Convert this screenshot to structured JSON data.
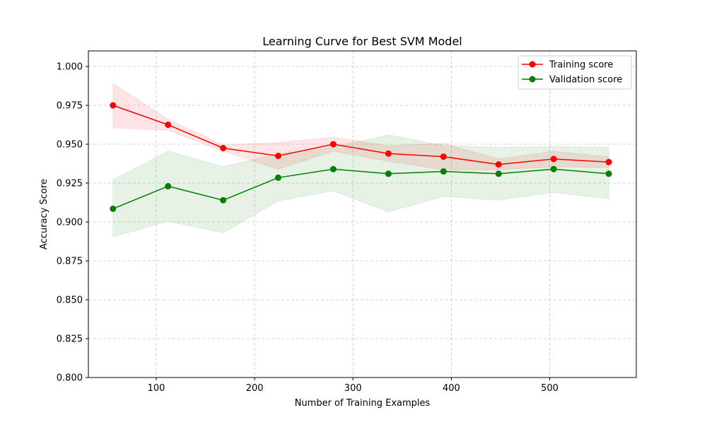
{
  "chart_data": {
    "type": "line",
    "title": "Learning Curve for Best SVM Model",
    "xlabel": "Number of Training Examples",
    "ylabel": "Accuracy Score",
    "xlim": [
      31,
      588
    ],
    "ylim": [
      0.8,
      1.01
    ],
    "x_ticks": [
      100,
      200,
      300,
      400,
      500
    ],
    "x_tick_labels": [
      "100",
      "200",
      "300",
      "400",
      "500"
    ],
    "y_ticks": [
      0.8,
      0.825,
      0.85,
      0.875,
      0.9,
      0.925,
      0.95,
      0.975,
      1.0
    ],
    "y_tick_labels": [
      "0.800",
      "0.825",
      "0.850",
      "0.875",
      "0.900",
      "0.925",
      "0.950",
      "0.975",
      "1.000"
    ],
    "grid": true,
    "legend_position": "top-right",
    "x": [
      56,
      112,
      168,
      224,
      280,
      336,
      392,
      448,
      504,
      560
    ],
    "series": [
      {
        "name": "Training score",
        "color": "#ff0000",
        "band_color": "#ff0000",
        "values": [
          0.975,
          0.9625,
          0.9475,
          0.9425,
          0.95,
          0.944,
          0.942,
          0.937,
          0.9405,
          0.9385
        ],
        "band_upper": [
          0.989,
          0.966,
          0.9495,
          0.951,
          0.9545,
          0.949,
          0.9505,
          0.9405,
          0.9455,
          0.942
        ],
        "band_lower": [
          0.9605,
          0.959,
          0.9455,
          0.934,
          0.9455,
          0.939,
          0.9335,
          0.9335,
          0.9355,
          0.935
        ]
      },
      {
        "name": "Validation score",
        "color": "#008000",
        "band_color": "#008000",
        "values": [
          0.9085,
          0.923,
          0.914,
          0.9285,
          0.934,
          0.931,
          0.9325,
          0.931,
          0.934,
          0.931
        ],
        "band_upper": [
          0.927,
          0.9455,
          0.9355,
          0.944,
          0.948,
          0.956,
          0.949,
          0.948,
          0.9485,
          0.948
        ],
        "band_lower": [
          0.8905,
          0.9005,
          0.893,
          0.9135,
          0.92,
          0.9065,
          0.9165,
          0.914,
          0.919,
          0.915
        ]
      }
    ]
  }
}
